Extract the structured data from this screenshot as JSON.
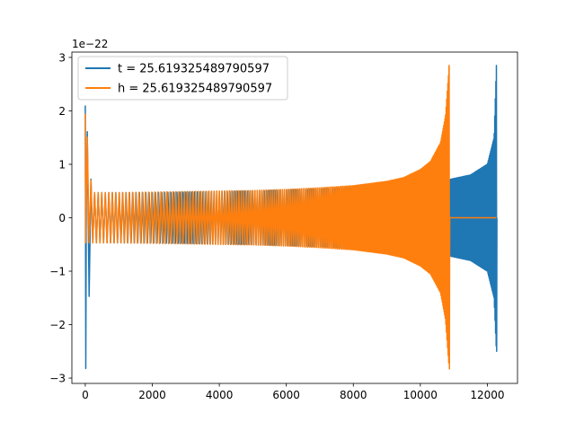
{
  "chart_data": {
    "type": "line",
    "title": "",
    "xlabel": "",
    "ylabel": "",
    "y_offset_text": "1e−22",
    "xlim": [
      -400,
      12900
    ],
    "ylim": [
      -3.1,
      3.1
    ],
    "xticks": [
      0,
      2000,
      4000,
      6000,
      8000,
      10000,
      12000
    ],
    "xtick_labels": [
      "0",
      "2000",
      "4000",
      "6000",
      "8000",
      "10000",
      "12000"
    ],
    "yticks": [
      -3,
      -2,
      -1,
      0,
      1,
      2,
      3
    ],
    "ytick_labels": [
      "−3",
      "−2",
      "−1",
      "0",
      "1",
      "2",
      "3"
    ],
    "grid": false,
    "legend": {
      "placement": "top-left"
    },
    "series": [
      {
        "name": "t = 25.619325489790597",
        "color": "#1f77b4",
        "envelope": {
          "x": [
            0,
            200,
            1000,
            2000,
            3000,
            4000,
            5000,
            6000,
            7000,
            8000,
            9000,
            10000,
            10500,
            10860,
            10900,
            11500,
            12000,
            12200,
            12270
          ],
          "upper": [
            2.1,
            0.47,
            0.47,
            0.47,
            0.48,
            0.49,
            0.5,
            0.52,
            0.54,
            0.57,
            0.6,
            0.63,
            0.65,
            0.7,
            0.72,
            0.8,
            1.0,
            1.5,
            2.85
          ],
          "lower": [
            -2.82,
            -0.47,
            -0.47,
            -0.47,
            -0.48,
            -0.49,
            -0.5,
            -0.52,
            -0.54,
            -0.57,
            -0.6,
            -0.63,
            -0.65,
            -0.7,
            -0.72,
            -0.8,
            -1.0,
            -1.5,
            -2.5
          ]
        }
      },
      {
        "name": "h = 25.619325489790597",
        "color": "#ff7f0e",
        "envelope": {
          "x": [
            0,
            200,
            1000,
            2000,
            3000,
            4000,
            5000,
            6000,
            7000,
            8000,
            9000,
            9500,
            10000,
            10300,
            10600,
            10750,
            10860
          ],
          "upper": [
            1.95,
            0.47,
            0.47,
            0.48,
            0.49,
            0.5,
            0.51,
            0.53,
            0.56,
            0.6,
            0.68,
            0.75,
            0.9,
            1.05,
            1.4,
            1.9,
            2.85
          ],
          "lower": [
            -0.47,
            -0.47,
            -0.47,
            -0.48,
            -0.49,
            -0.5,
            -0.51,
            -0.53,
            -0.56,
            -0.6,
            -0.68,
            -0.75,
            -0.9,
            -1.05,
            -1.4,
            -1.9,
            -2.83
          ]
        },
        "zero_segment_x": [
          10860,
          12270
        ]
      }
    ]
  }
}
